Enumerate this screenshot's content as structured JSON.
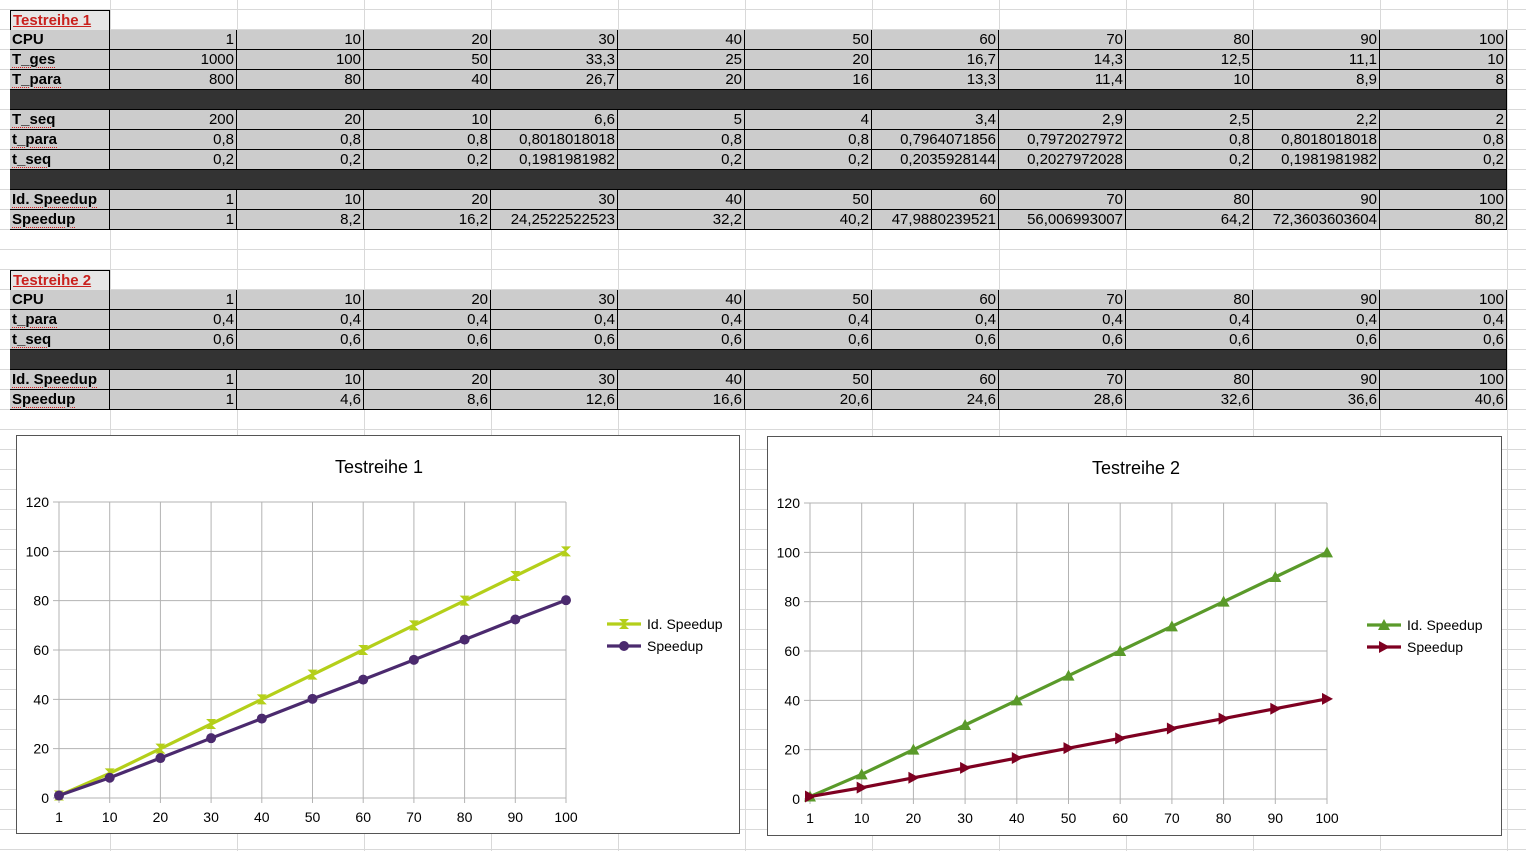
{
  "sheet": {
    "columns": [
      "1",
      "10",
      "20",
      "30",
      "40",
      "50",
      "60",
      "70",
      "80",
      "90",
      "100"
    ],
    "tables": [
      {
        "title": "Testreihe 1",
        "rows": [
          {
            "label": "CPU",
            "kind": "data",
            "values": [
              "1",
              "10",
              "20",
              "30",
              "40",
              "50",
              "60",
              "70",
              "80",
              "90",
              "100"
            ]
          },
          {
            "label": "T_ges",
            "kind": "data",
            "values": [
              "1000",
              "100",
              "50",
              "33,3",
              "25",
              "20",
              "16,7",
              "14,3",
              "12,5",
              "11,1",
              "10"
            ]
          },
          {
            "label": "T_para",
            "kind": "data",
            "values": [
              "800",
              "80",
              "40",
              "26,7",
              "20",
              "16",
              "13,3",
              "11,4",
              "10",
              "8,9",
              "8"
            ]
          },
          {
            "label": "",
            "kind": "dark",
            "values": []
          },
          {
            "label": "T_seq",
            "kind": "data",
            "values": [
              "200",
              "20",
              "10",
              "6,6",
              "5",
              "4",
              "3,4",
              "2,9",
              "2,5",
              "2,2",
              "2"
            ]
          },
          {
            "label": "t_para",
            "kind": "data",
            "values": [
              "0,8",
              "0,8",
              "0,8",
              "0,8018018018",
              "0,8",
              "0,8",
              "0,7964071856",
              "0,7972027972",
              "0,8",
              "0,8018018018",
              "0,8"
            ]
          },
          {
            "label": "t_seq",
            "kind": "data",
            "values": [
              "0,2",
              "0,2",
              "0,2",
              "0,1981981982",
              "0,2",
              "0,2",
              "0,2035928144",
              "0,2027972028",
              "0,2",
              "0,1981981982",
              "0,2"
            ]
          },
          {
            "label": "",
            "kind": "dark",
            "values": []
          },
          {
            "label": "Id. Speedup",
            "kind": "data",
            "values": [
              "1",
              "10",
              "20",
              "30",
              "40",
              "50",
              "60",
              "70",
              "80",
              "90",
              "100"
            ]
          },
          {
            "label": "Speedup",
            "kind": "data",
            "values": [
              "1",
              "8,2",
              "16,2",
              "24,2522522523",
              "32,2",
              "40,2",
              "47,9880239521",
              "56,006993007",
              "64,2",
              "72,3603603604",
              "80,2"
            ]
          }
        ]
      },
      {
        "title": "Testreihe 2",
        "rows": [
          {
            "label": "CPU",
            "kind": "data",
            "values": [
              "1",
              "10",
              "20",
              "30",
              "40",
              "50",
              "60",
              "70",
              "80",
              "90",
              "100"
            ]
          },
          {
            "label": "t_para",
            "kind": "data",
            "values": [
              "0,4",
              "0,4",
              "0,4",
              "0,4",
              "0,4",
              "0,4",
              "0,4",
              "0,4",
              "0,4",
              "0,4",
              "0,4"
            ]
          },
          {
            "label": "t_seq",
            "kind": "data",
            "values": [
              "0,6",
              "0,6",
              "0,6",
              "0,6",
              "0,6",
              "0,6",
              "0,6",
              "0,6",
              "0,6",
              "0,6",
              "0,6"
            ]
          },
          {
            "label": "",
            "kind": "dark",
            "values": []
          },
          {
            "label": "Id. Speedup",
            "kind": "data",
            "values": [
              "1",
              "10",
              "20",
              "30",
              "40",
              "50",
              "60",
              "70",
              "80",
              "90",
              "100"
            ]
          },
          {
            "label": "Speedup",
            "kind": "data",
            "values": [
              "1",
              "4,6",
              "8,6",
              "12,6",
              "16,6",
              "20,6",
              "24,6",
              "28,6",
              "32,6",
              "36,6",
              "40,6"
            ]
          }
        ]
      }
    ]
  },
  "chart_data": [
    {
      "type": "line",
      "title": "Testreihe 1",
      "xlabel": "",
      "ylabel": "",
      "categories": [
        "1",
        "10",
        "20",
        "30",
        "40",
        "50",
        "60",
        "70",
        "80",
        "90",
        "100"
      ],
      "ylim": [
        0,
        120
      ],
      "yticks": [
        0,
        20,
        40,
        60,
        80,
        100,
        120
      ],
      "grid": true,
      "legend": "right",
      "series": [
        {
          "name": "Id. Speedup",
          "color": "#b4cf1a",
          "marker": "hourglass",
          "values": [
            1,
            10,
            20,
            30,
            40,
            50,
            60,
            70,
            80,
            90,
            100
          ]
        },
        {
          "name": "Speedup",
          "color": "#4b2a6e",
          "marker": "circle",
          "values": [
            1,
            8.2,
            16.2,
            24.25,
            32.2,
            40.2,
            47.99,
            56.01,
            64.2,
            72.36,
            80.2
          ]
        }
      ]
    },
    {
      "type": "line",
      "title": "Testreihe 2",
      "xlabel": "",
      "ylabel": "",
      "categories": [
        "1",
        "10",
        "20",
        "30",
        "40",
        "50",
        "60",
        "70",
        "80",
        "90",
        "100"
      ],
      "ylim": [
        0,
        120
      ],
      "yticks": [
        0,
        20,
        40,
        60,
        80,
        100,
        120
      ],
      "grid": true,
      "legend": "right",
      "series": [
        {
          "name": "Id. Speedup",
          "color": "#5a9a2a",
          "marker": "triangle-up",
          "values": [
            1,
            10,
            20,
            30,
            40,
            50,
            60,
            70,
            80,
            90,
            100
          ]
        },
        {
          "name": "Speedup",
          "color": "#7e0021",
          "marker": "triangle-right",
          "values": [
            1,
            4.6,
            8.6,
            12.6,
            16.6,
            20.6,
            24.6,
            28.6,
            32.6,
            36.6,
            40.6
          ]
        }
      ]
    }
  ]
}
